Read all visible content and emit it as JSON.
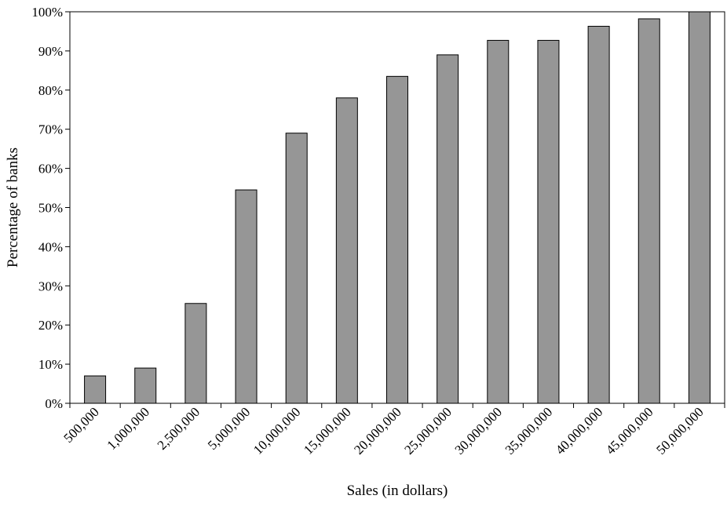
{
  "chart_data": {
    "type": "bar",
    "title": "",
    "xlabel": "Sales (in dollars)",
    "ylabel": "Percentage of banks",
    "categories": [
      "500,000",
      "1,000,000",
      "2,500,000",
      "5,000,000",
      "10,000,000",
      "15,000,000",
      "20,000,000",
      "25,000,000",
      "30,000,000",
      "35,000,000",
      "40,000,000",
      "45,000,000",
      "50,000,000"
    ],
    "values": [
      7.0,
      9.0,
      25.5,
      54.5,
      69.0,
      78.0,
      83.5,
      89.0,
      92.7,
      92.7,
      96.3,
      98.2,
      100.0
    ],
    "ylim": [
      0,
      100
    ],
    "yticks": [
      0,
      10,
      20,
      30,
      40,
      50,
      60,
      70,
      80,
      90,
      100
    ],
    "ytick_labels": [
      "0%",
      "10%",
      "20%",
      "30%",
      "40%",
      "50%",
      "60%",
      "70%",
      "80%",
      "90%",
      "100%"
    ],
    "grid": false,
    "legend": "none",
    "colors": {
      "bar_fill": "#969696",
      "bar_stroke": "#000000",
      "axis": "#000000"
    }
  }
}
